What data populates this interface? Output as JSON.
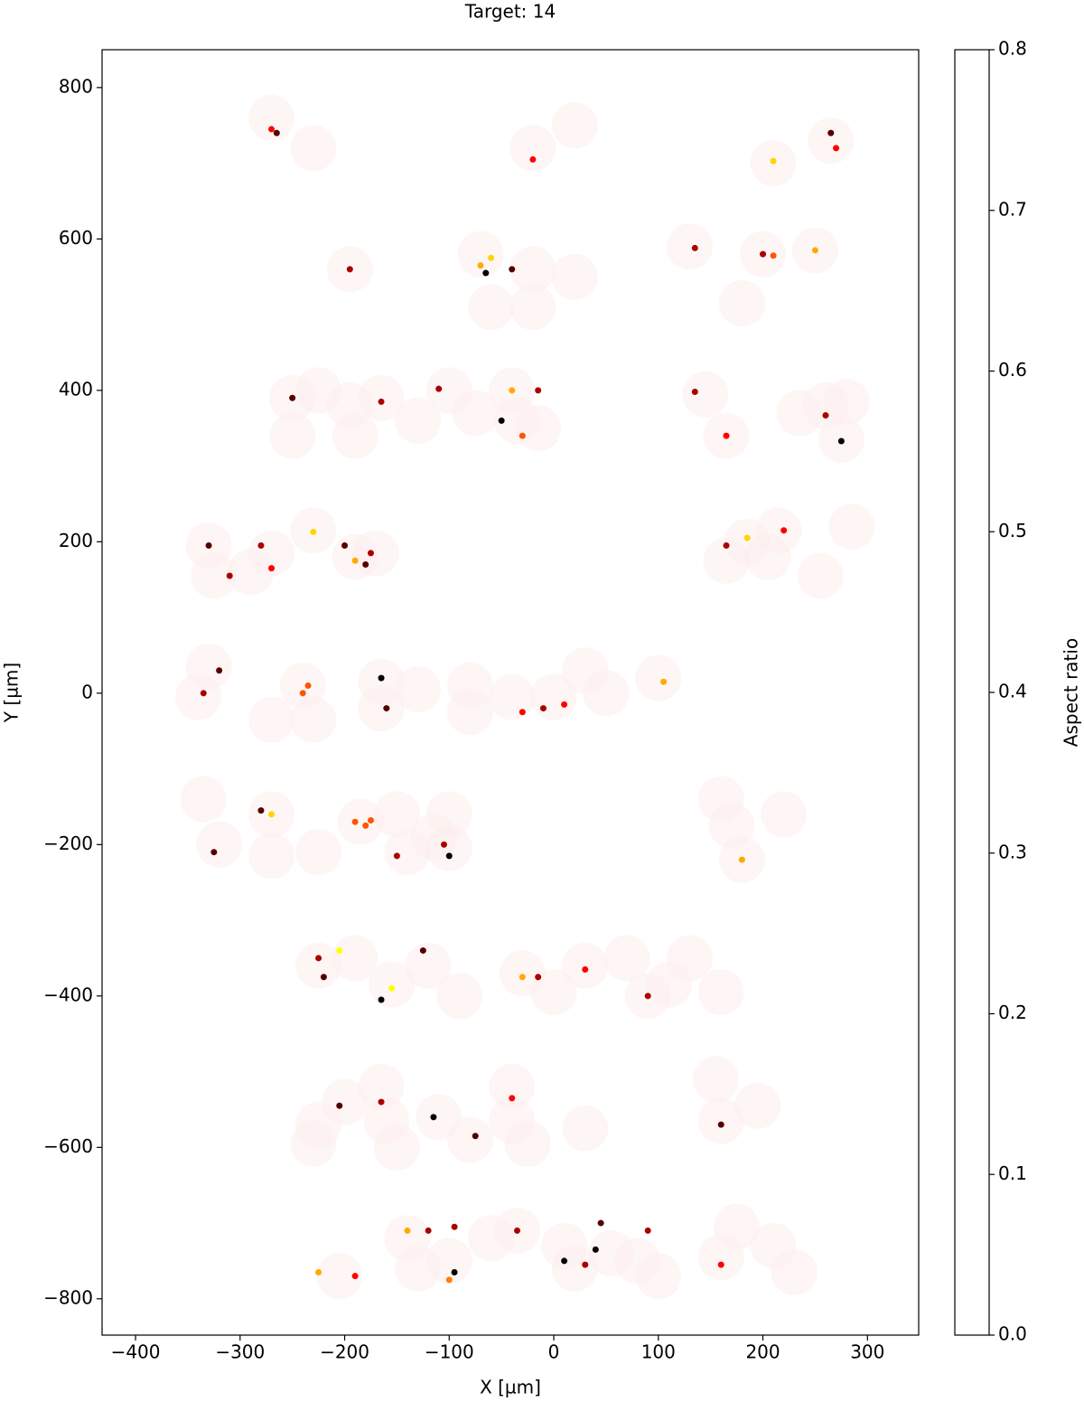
{
  "chart_data": {
    "type": "scatter",
    "title": "Target: 14",
    "x_label": "X [µm]",
    "y_label": "Y [µm]",
    "colorbar_label": "Aspect ratio",
    "colormap": "hot_r",
    "xlim": [
      -432,
      349
    ],
    "ylim": [
      -848,
      850
    ],
    "clim": [
      0,
      0.8
    ],
    "xticks": [
      {
        "value": -400,
        "label": "−400"
      },
      {
        "value": -300,
        "label": "−300"
      },
      {
        "value": -200,
        "label": "−200"
      },
      {
        "value": -100,
        "label": "−100"
      },
      0,
      100,
      200,
      300
    ],
    "yticks": [
      {
        "value": -800,
        "label": "−800"
      },
      {
        "value": -600,
        "label": "−600"
      },
      {
        "value": -400,
        "label": "−400"
      },
      {
        "value": -200,
        "label": "−200"
      },
      0,
      200,
      400,
      600,
      800
    ],
    "cticks": [
      {
        "value": 0,
        "label": "0.0"
      },
      0.1,
      0.2,
      0.3,
      0.4,
      0.5,
      0.6,
      0.7,
      0.8
    ],
    "fields": {
      "color": "#fdeeee",
      "size": 22,
      "x": [
        -270,
        -230,
        -20,
        20,
        210,
        265,
        -195,
        -70,
        -20,
        -60,
        -20,
        20,
        130,
        180,
        200,
        250,
        -250,
        -225,
        -250,
        -195,
        -190,
        -165,
        -130,
        -100,
        -75,
        -40,
        -35,
        -15,
        145,
        165,
        235,
        260,
        275,
        280,
        -330,
        -325,
        -290,
        -270,
        -230,
        -190,
        -170,
        165,
        185,
        205,
        215,
        255,
        285,
        -330,
        -340,
        -270,
        -240,
        -230,
        -165,
        -165,
        -130,
        -80,
        -80,
        -40,
        0,
        30,
        50,
        100,
        -335,
        -320,
        -270,
        -270,
        -225,
        -185,
        -150,
        -140,
        -115,
        -100,
        -100,
        160,
        170,
        180,
        220,
        -225,
        -190,
        -155,
        -120,
        -90,
        -30,
        0,
        30,
        70,
        90,
        110,
        130,
        160,
        -200,
        -225,
        -230,
        -165,
        -160,
        -150,
        -110,
        -80,
        -40,
        -40,
        -25,
        30,
        155,
        160,
        195,
        -205,
        -140,
        -130,
        -100,
        -60,
        -35,
        10,
        20,
        55,
        80,
        100,
        160,
        175,
        210,
        230
      ],
      "y": [
        760,
        720,
        720,
        750,
        700,
        730,
        560,
        580,
        560,
        510,
        510,
        550,
        590,
        515,
        580,
        585,
        390,
        400,
        340,
        380,
        340,
        390,
        360,
        400,
        370,
        400,
        360,
        350,
        395,
        340,
        370,
        380,
        335,
        385,
        195,
        155,
        160,
        185,
        215,
        180,
        185,
        175,
        200,
        180,
        215,
        155,
        220,
        35,
        -5,
        -35,
        10,
        -35,
        15,
        -20,
        5,
        10,
        -25,
        -5,
        -5,
        30,
        0,
        20,
        -140,
        -200,
        -160,
        -215,
        -210,
        -170,
        -160,
        -210,
        -190,
        -160,
        -205,
        -140,
        -175,
        -220,
        -160,
        -360,
        -350,
        -385,
        -360,
        -400,
        -370,
        -395,
        -360,
        -350,
        -400,
        -385,
        -350,
        -395,
        -540,
        -570,
        -595,
        -520,
        -565,
        -600,
        -560,
        -590,
        -520,
        -565,
        -595,
        -575,
        -510,
        -565,
        -545,
        -770,
        -720,
        -760,
        -750,
        -720,
        -710,
        -730,
        -760,
        -740,
        -750,
        -770,
        -745,
        -705,
        -730,
        -765
      ]
    },
    "particles": {
      "x": [
        -270,
        -265,
        -20,
        210,
        265,
        270,
        -195,
        -65,
        -70,
        -60,
        -40,
        135,
        200,
        210,
        250,
        -250,
        -165,
        -110,
        -50,
        -30,
        -40,
        -15,
        135,
        165,
        260,
        275,
        -330,
        -310,
        -280,
        -270,
        -200,
        -175,
        -180,
        -190,
        -230,
        165,
        220,
        185,
        -320,
        -335,
        -240,
        -235,
        -165,
        -160,
        -30,
        -10,
        10,
        105,
        -325,
        -280,
        -270,
        -190,
        -180,
        -175,
        -100,
        -105,
        -150,
        180,
        -225,
        -220,
        -205,
        -155,
        -165,
        -125,
        -30,
        -15,
        30,
        90,
        -205,
        -165,
        -115,
        -75,
        -40,
        160,
        -225,
        -190,
        -120,
        -140,
        -95,
        -100,
        -95,
        -35,
        10,
        30,
        40,
        45,
        90,
        160
      ],
      "y": [
        745,
        740,
        705,
        703,
        740,
        720,
        560,
        555,
        565,
        575,
        560,
        588,
        580,
        578,
        585,
        390,
        385,
        402,
        360,
        340,
        400,
        400,
        398,
        340,
        367,
        333,
        195,
        155,
        195,
        165,
        195,
        185,
        170,
        175,
        213,
        195,
        215,
        205,
        30,
        0,
        0,
        10,
        20,
        -20,
        -25,
        -20,
        -15,
        15,
        -210,
        -155,
        -160,
        -170,
        -175,
        -168,
        -215,
        -200,
        -215,
        -220,
        -350,
        -375,
        -340,
        -390,
        -405,
        -340,
        -375,
        -375,
        -365,
        -400,
        -545,
        -540,
        -560,
        -585,
        -535,
        -570,
        -765,
        -770,
        -710,
        -710,
        -765,
        -775,
        -705,
        -710,
        -750,
        -755,
        -735,
        -700,
        -710,
        -755
      ],
      "values": [
        0.5,
        0.7,
        0.5,
        0.25,
        0.7,
        0.5,
        0.6,
        0.8,
        0.3,
        0.25,
        0.7,
        0.6,
        0.6,
        0.4,
        0.3,
        0.7,
        0.6,
        0.6,
        0.8,
        0.4,
        0.3,
        0.6,
        0.6,
        0.5,
        0.6,
        0.8,
        0.7,
        0.6,
        0.6,
        0.5,
        0.7,
        0.6,
        0.7,
        0.3,
        0.25,
        0.6,
        0.5,
        0.25,
        0.7,
        0.6,
        0.4,
        0.4,
        0.8,
        0.7,
        0.5,
        0.6,
        0.5,
        0.3,
        0.7,
        0.7,
        0.25,
        0.4,
        0.4,
        0.4,
        0.8,
        0.6,
        0.6,
        0.3,
        0.6,
        0.7,
        0.2,
        0.2,
        0.8,
        0.7,
        0.3,
        0.6,
        0.5,
        0.6,
        0.7,
        0.6,
        0.8,
        0.7,
        0.5,
        0.7,
        0.3,
        0.5,
        0.6,
        0.3,
        0.8,
        0.35,
        0.6,
        0.6,
        0.8,
        0.6,
        0.8,
        0.7,
        0.6,
        0.5
      ]
    }
  }
}
